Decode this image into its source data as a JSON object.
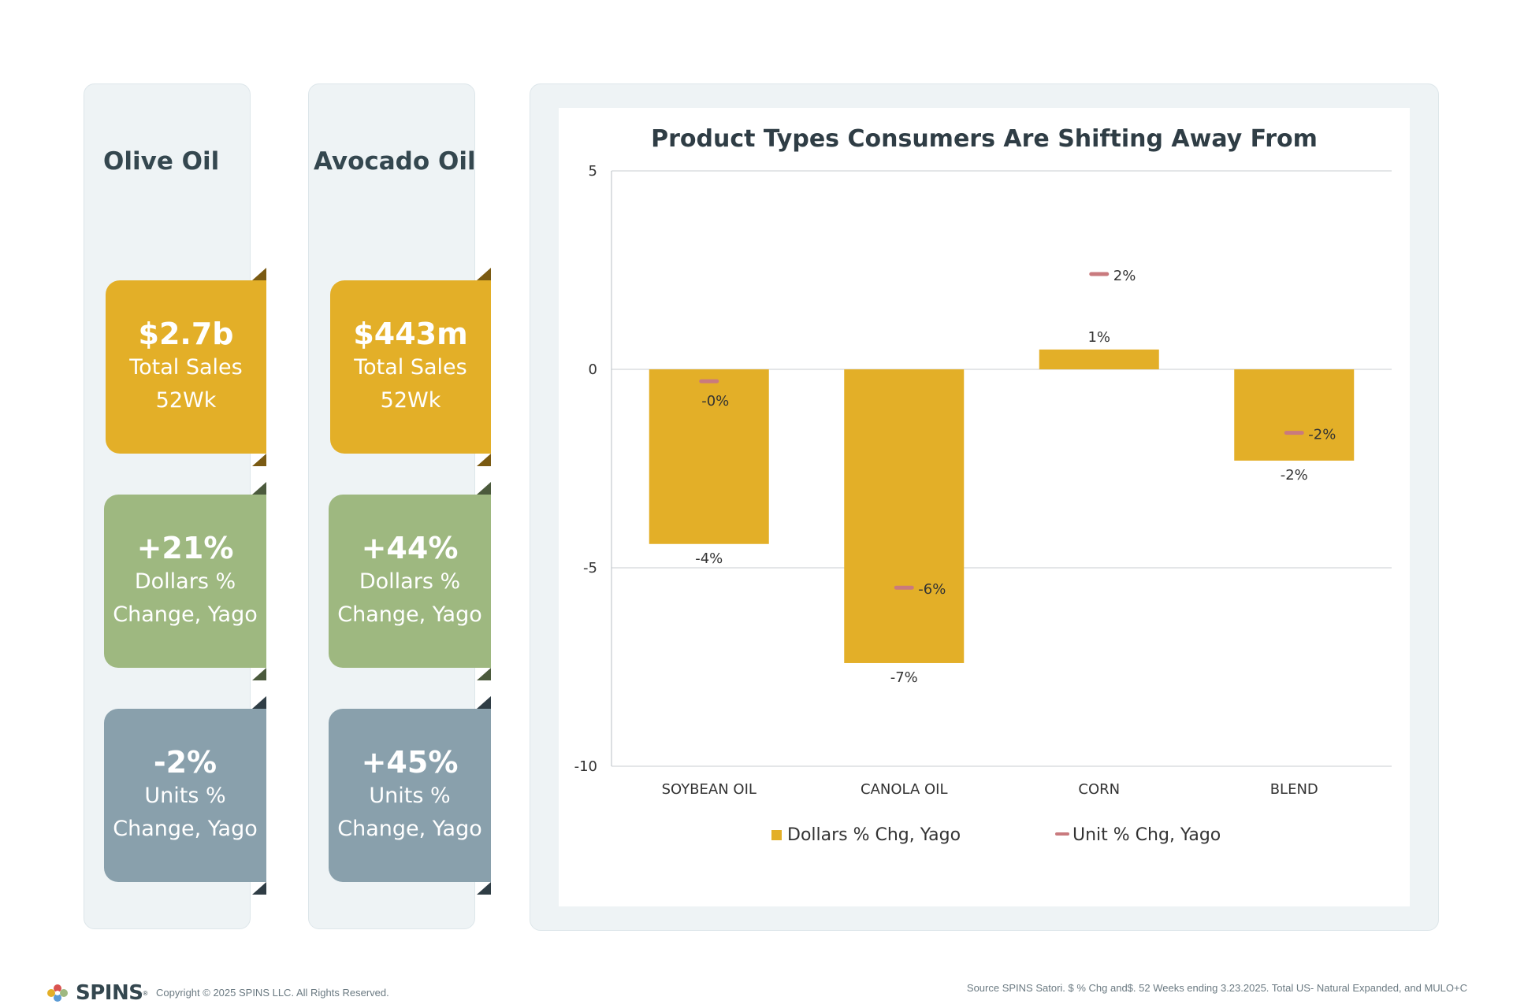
{
  "columns": [
    {
      "title": "Olive Oil",
      "sales": {
        "value": "$2.7b",
        "line1": "Total Sales",
        "line2": "52Wk"
      },
      "dollars": {
        "value": "+21%",
        "line1": "Dollars %",
        "line2": "Change, Yago"
      },
      "units": {
        "value": "-2%",
        "line1": "Units %",
        "line2": "Change, Yago"
      }
    },
    {
      "title": "Avocado Oil",
      "sales": {
        "value": "$443m",
        "line1": "Total Sales",
        "line2": "52Wk"
      },
      "dollars": {
        "value": "+44%",
        "line1": "Dollars %",
        "line2": "Change, Yago"
      },
      "units": {
        "value": "+45%",
        "line1": "Units %",
        "line2": "Change, Yago"
      }
    }
  ],
  "colors": {
    "bar": "#e3af28",
    "unit_marker": "#c97a7e",
    "sales_tile": "#e3af28",
    "dollars_tile": "#9eb880",
    "units_tile": "#89a0ac"
  },
  "chart_data": {
    "type": "bar",
    "title": "Product Types Consumers Are Shifting Away From",
    "categories": [
      "SOYBEAN OIL",
      "CANOLA OIL",
      "CORN",
      "BLEND"
    ],
    "series": [
      {
        "name": "Dollars % Chg, Yago",
        "values": [
          -4.4,
          -7.4,
          0.5,
          -2.3
        ],
        "labels": [
          "-4%",
          "-7%",
          "1%",
          "-2%"
        ]
      },
      {
        "name": "Unit % Chg, Yago",
        "values": [
          -0.3,
          -5.5,
          2.4,
          -1.6
        ],
        "labels": [
          "-0%",
          "-6%",
          "2%",
          "-2%"
        ]
      }
    ],
    "ylim": [
      -10,
      5
    ],
    "yticks": [
      5,
      0,
      -5,
      -10
    ],
    "grid": true,
    "legend": "bottom"
  },
  "footer": {
    "brand": "SPINS",
    "copyright": "Copyright © 2025 SPINS LLC. All Rights Reserved.",
    "source": "Source SPINS Satori. $ % Chg and$. 52 Weeks ending 3.23.2025. Total US- Natural Expanded,  and MULO+C"
  }
}
